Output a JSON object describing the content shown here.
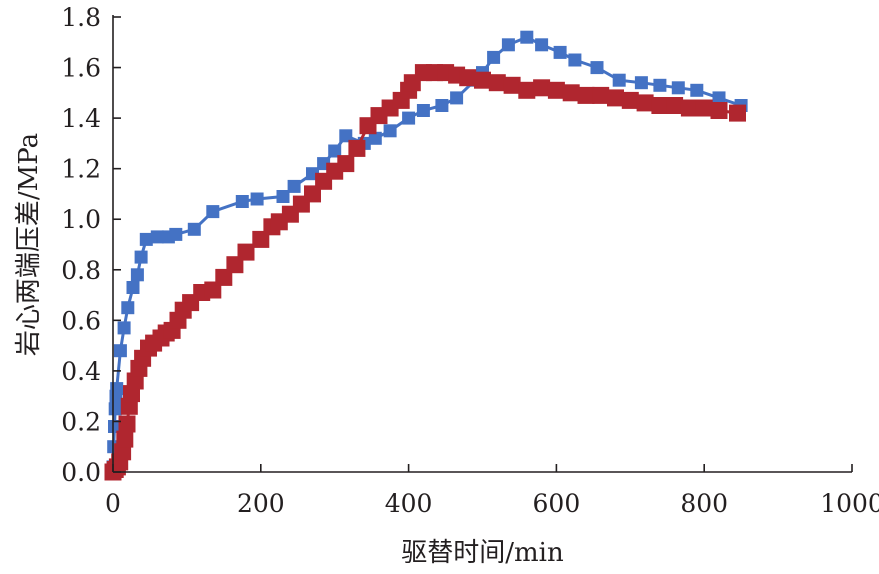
{
  "chart_data": {
    "type": "line",
    "title": "",
    "xlabel": "驱替时间/min",
    "ylabel": "岩心两端压差/MPa",
    "xlim": [
      0,
      1000
    ],
    "ylim": [
      0,
      1.8
    ],
    "x_ticks": [
      "0",
      "200",
      "400",
      "600",
      "800",
      "1000"
    ],
    "y_ticks": [
      "0.0",
      "0.2",
      "0.4",
      "0.6",
      "0.8",
      "1.0",
      "1.2",
      "1.4",
      "1.6",
      "1.8"
    ],
    "grid": false,
    "legend": "none",
    "series": [
      {
        "color": "#4472c4",
        "marker": "square",
        "points": [
          [
            0,
            0.02
          ],
          [
            1,
            0.1
          ],
          [
            2,
            0.18
          ],
          [
            3,
            0.25
          ],
          [
            4,
            0.3
          ],
          [
            5,
            0.33
          ],
          [
            10,
            0.48
          ],
          [
            15,
            0.57
          ],
          [
            20,
            0.65
          ],
          [
            27,
            0.73
          ],
          [
            33,
            0.78
          ],
          [
            38,
            0.85
          ],
          [
            45,
            0.92
          ],
          [
            60,
            0.93
          ],
          [
            75,
            0.93
          ],
          [
            85,
            0.94
          ],
          [
            110,
            0.96
          ],
          [
            135,
            1.03
          ],
          [
            175,
            1.07
          ],
          [
            195,
            1.08
          ],
          [
            230,
            1.09
          ],
          [
            245,
            1.13
          ],
          [
            270,
            1.18
          ],
          [
            285,
            1.22
          ],
          [
            300,
            1.27
          ],
          [
            315,
            1.33
          ],
          [
            340,
            1.3
          ],
          [
            355,
            1.32
          ],
          [
            375,
            1.35
          ],
          [
            400,
            1.4
          ],
          [
            420,
            1.43
          ],
          [
            445,
            1.45
          ],
          [
            465,
            1.48
          ],
          [
            490,
            1.55
          ],
          [
            500,
            1.58
          ],
          [
            515,
            1.64
          ],
          [
            535,
            1.69
          ],
          [
            560,
            1.72
          ],
          [
            580,
            1.69
          ],
          [
            605,
            1.66
          ],
          [
            625,
            1.63
          ],
          [
            655,
            1.6
          ],
          [
            685,
            1.55
          ],
          [
            715,
            1.54
          ],
          [
            740,
            1.53
          ],
          [
            765,
            1.52
          ],
          [
            790,
            1.51
          ],
          [
            820,
            1.48
          ],
          [
            850,
            1.45
          ]
        ]
      },
      {
        "color": "#b0262f",
        "marker": "square",
        "points": [
          [
            0,
            0.0
          ],
          [
            3,
            0.01
          ],
          [
            6,
            0.02
          ],
          [
            9,
            0.04
          ],
          [
            13,
            0.08
          ],
          [
            16,
            0.13
          ],
          [
            19,
            0.19
          ],
          [
            22,
            0.26
          ],
          [
            25,
            0.31
          ],
          [
            30,
            0.36
          ],
          [
            35,
            0.41
          ],
          [
            40,
            0.45
          ],
          [
            48,
            0.49
          ],
          [
            55,
            0.51
          ],
          [
            65,
            0.53
          ],
          [
            72,
            0.55
          ],
          [
            80,
            0.56
          ],
          [
            88,
            0.6
          ],
          [
            95,
            0.64
          ],
          [
            105,
            0.67
          ],
          [
            120,
            0.71
          ],
          [
            135,
            0.72
          ],
          [
            150,
            0.77
          ],
          [
            165,
            0.82
          ],
          [
            180,
            0.87
          ],
          [
            200,
            0.92
          ],
          [
            215,
            0.97
          ],
          [
            225,
            0.99
          ],
          [
            240,
            1.02
          ],
          [
            255,
            1.06
          ],
          [
            270,
            1.1
          ],
          [
            285,
            1.15
          ],
          [
            300,
            1.19
          ],
          [
            315,
            1.22
          ],
          [
            330,
            1.28
          ],
          [
            345,
            1.37
          ],
          [
            360,
            1.41
          ],
          [
            375,
            1.44
          ],
          [
            390,
            1.47
          ],
          [
            400,
            1.51
          ],
          [
            405,
            1.54
          ],
          [
            420,
            1.58
          ],
          [
            435,
            1.58
          ],
          [
            450,
            1.58
          ],
          [
            465,
            1.57
          ],
          [
            480,
            1.56
          ],
          [
            500,
            1.55
          ],
          [
            520,
            1.54
          ],
          [
            540,
            1.53
          ],
          [
            560,
            1.51
          ],
          [
            580,
            1.52
          ],
          [
            600,
            1.51
          ],
          [
            620,
            1.5
          ],
          [
            640,
            1.49
          ],
          [
            660,
            1.49
          ],
          [
            680,
            1.48
          ],
          [
            700,
            1.47
          ],
          [
            720,
            1.46
          ],
          [
            740,
            1.45
          ],
          [
            760,
            1.45
          ],
          [
            780,
            1.44
          ],
          [
            800,
            1.44
          ],
          [
            820,
            1.43
          ],
          [
            845,
            1.42
          ]
        ]
      }
    ]
  }
}
